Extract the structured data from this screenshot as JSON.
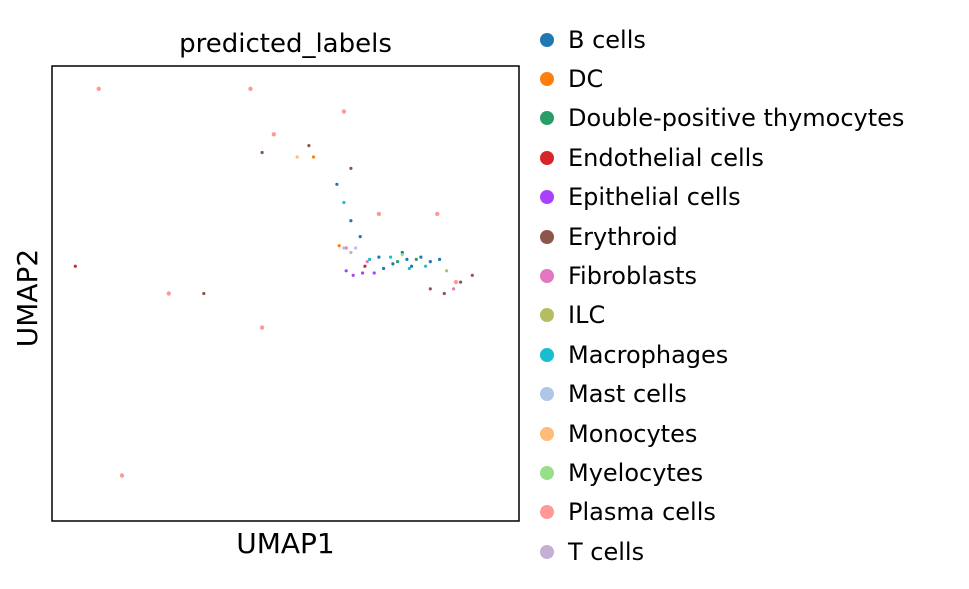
{
  "chart_data": {
    "type": "scatter",
    "title": "predicted_labels",
    "xlabel": "UMAP1",
    "ylabel": "UMAP2",
    "xticks": [],
    "yticks": [],
    "grid": false,
    "legend_position": "right, outside plot",
    "xlim": [
      -10,
      10
    ],
    "ylim": [
      -10,
      10
    ],
    "series": [
      {
        "name": "B cells",
        "color": "#1f77b4",
        "points": [
          [
            5.2,
            1.5
          ],
          [
            4.6,
            1.3
          ],
          [
            5.8,
            1.6
          ],
          [
            6.2,
            1.4
          ],
          [
            4.2,
            1.1
          ],
          [
            5.0,
            1.8
          ],
          [
            3.2,
            2.5
          ],
          [
            2.2,
            4.8
          ],
          [
            2.8,
            3.2
          ],
          [
            5.4,
            1.2
          ],
          [
            6.6,
            1.5
          ],
          [
            4.0,
            1.6
          ]
        ]
      },
      {
        "name": "DC",
        "color": "#ff7f0e",
        "points": [
          [
            2.3,
            2.1
          ],
          [
            1.2,
            6.0
          ]
        ]
      },
      {
        "name": "Double-positive thymocytes",
        "color": "#279e68",
        "points": [
          [
            4.8,
            1.4
          ],
          [
            5.6,
            1.5
          ]
        ]
      },
      {
        "name": "Endothelial cells",
        "color": "#d62728",
        "points": [
          [
            3.4,
            1.2
          ],
          [
            -9.0,
            1.2
          ]
        ]
      },
      {
        "name": "Epithelial cells",
        "color": "#aa40fc",
        "points": [
          [
            2.6,
            1.0
          ],
          [
            2.9,
            0.8
          ],
          [
            3.3,
            0.9
          ],
          [
            3.8,
            0.9
          ]
        ]
      },
      {
        "name": "Erythroid",
        "color": "#8c564b",
        "points": [
          [
            7.5,
            0.5
          ],
          [
            6.2,
            0.2
          ],
          [
            1.0,
            6.5
          ],
          [
            -1.0,
            6.2
          ],
          [
            2.8,
            5.5
          ],
          [
            6.8,
            0.0
          ],
          [
            8.0,
            0.8
          ],
          [
            -3.5,
            0.0
          ]
        ]
      },
      {
        "name": "Fibroblasts",
        "color": "#e377c2",
        "points": [
          [
            2.6,
            2.0
          ],
          [
            3.5,
            1.4
          ],
          [
            7.2,
            0.2
          ]
        ]
      },
      {
        "name": "ILC",
        "color": "#b5bd61",
        "points": [
          [
            6.9,
            1.0
          ]
        ]
      },
      {
        "name": "Macrophages",
        "color": "#17becf",
        "points": [
          [
            4.5,
            1.6
          ],
          [
            5.3,
            1.1
          ],
          [
            6.0,
            1.2
          ],
          [
            3.6,
            1.5
          ],
          [
            2.5,
            4.0
          ]
        ]
      },
      {
        "name": "Mast cells",
        "color": "#aec7e8",
        "points": [
          [
            3.0,
            2.0
          ]
        ]
      },
      {
        "name": "Monocytes",
        "color": "#ffbb78",
        "points": [
          [
            0.5,
            6.0
          ]
        ]
      },
      {
        "name": "Myelocytes",
        "color": "#98df8a",
        "points": [
          [
            5.0,
            1.7
          ]
        ]
      },
      {
        "name": "Plasma cells",
        "color": "#ff9896",
        "points": [
          [
            -5.0,
            0.0
          ],
          [
            -0.5,
            7.0
          ],
          [
            7.3,
            0.5
          ],
          [
            4.0,
            3.5
          ],
          [
            -1.5,
            9.0
          ],
          [
            -8.0,
            9.0
          ],
          [
            -1.0,
            -1.5
          ],
          [
            -7.0,
            -8.0
          ],
          [
            2.5,
            8.0
          ],
          [
            6.5,
            3.5
          ]
        ]
      },
      {
        "name": "T cells",
        "color": "#c5b0d5",
        "points": [
          [
            2.5,
            2.0
          ],
          [
            2.8,
            1.8
          ]
        ]
      }
    ]
  }
}
